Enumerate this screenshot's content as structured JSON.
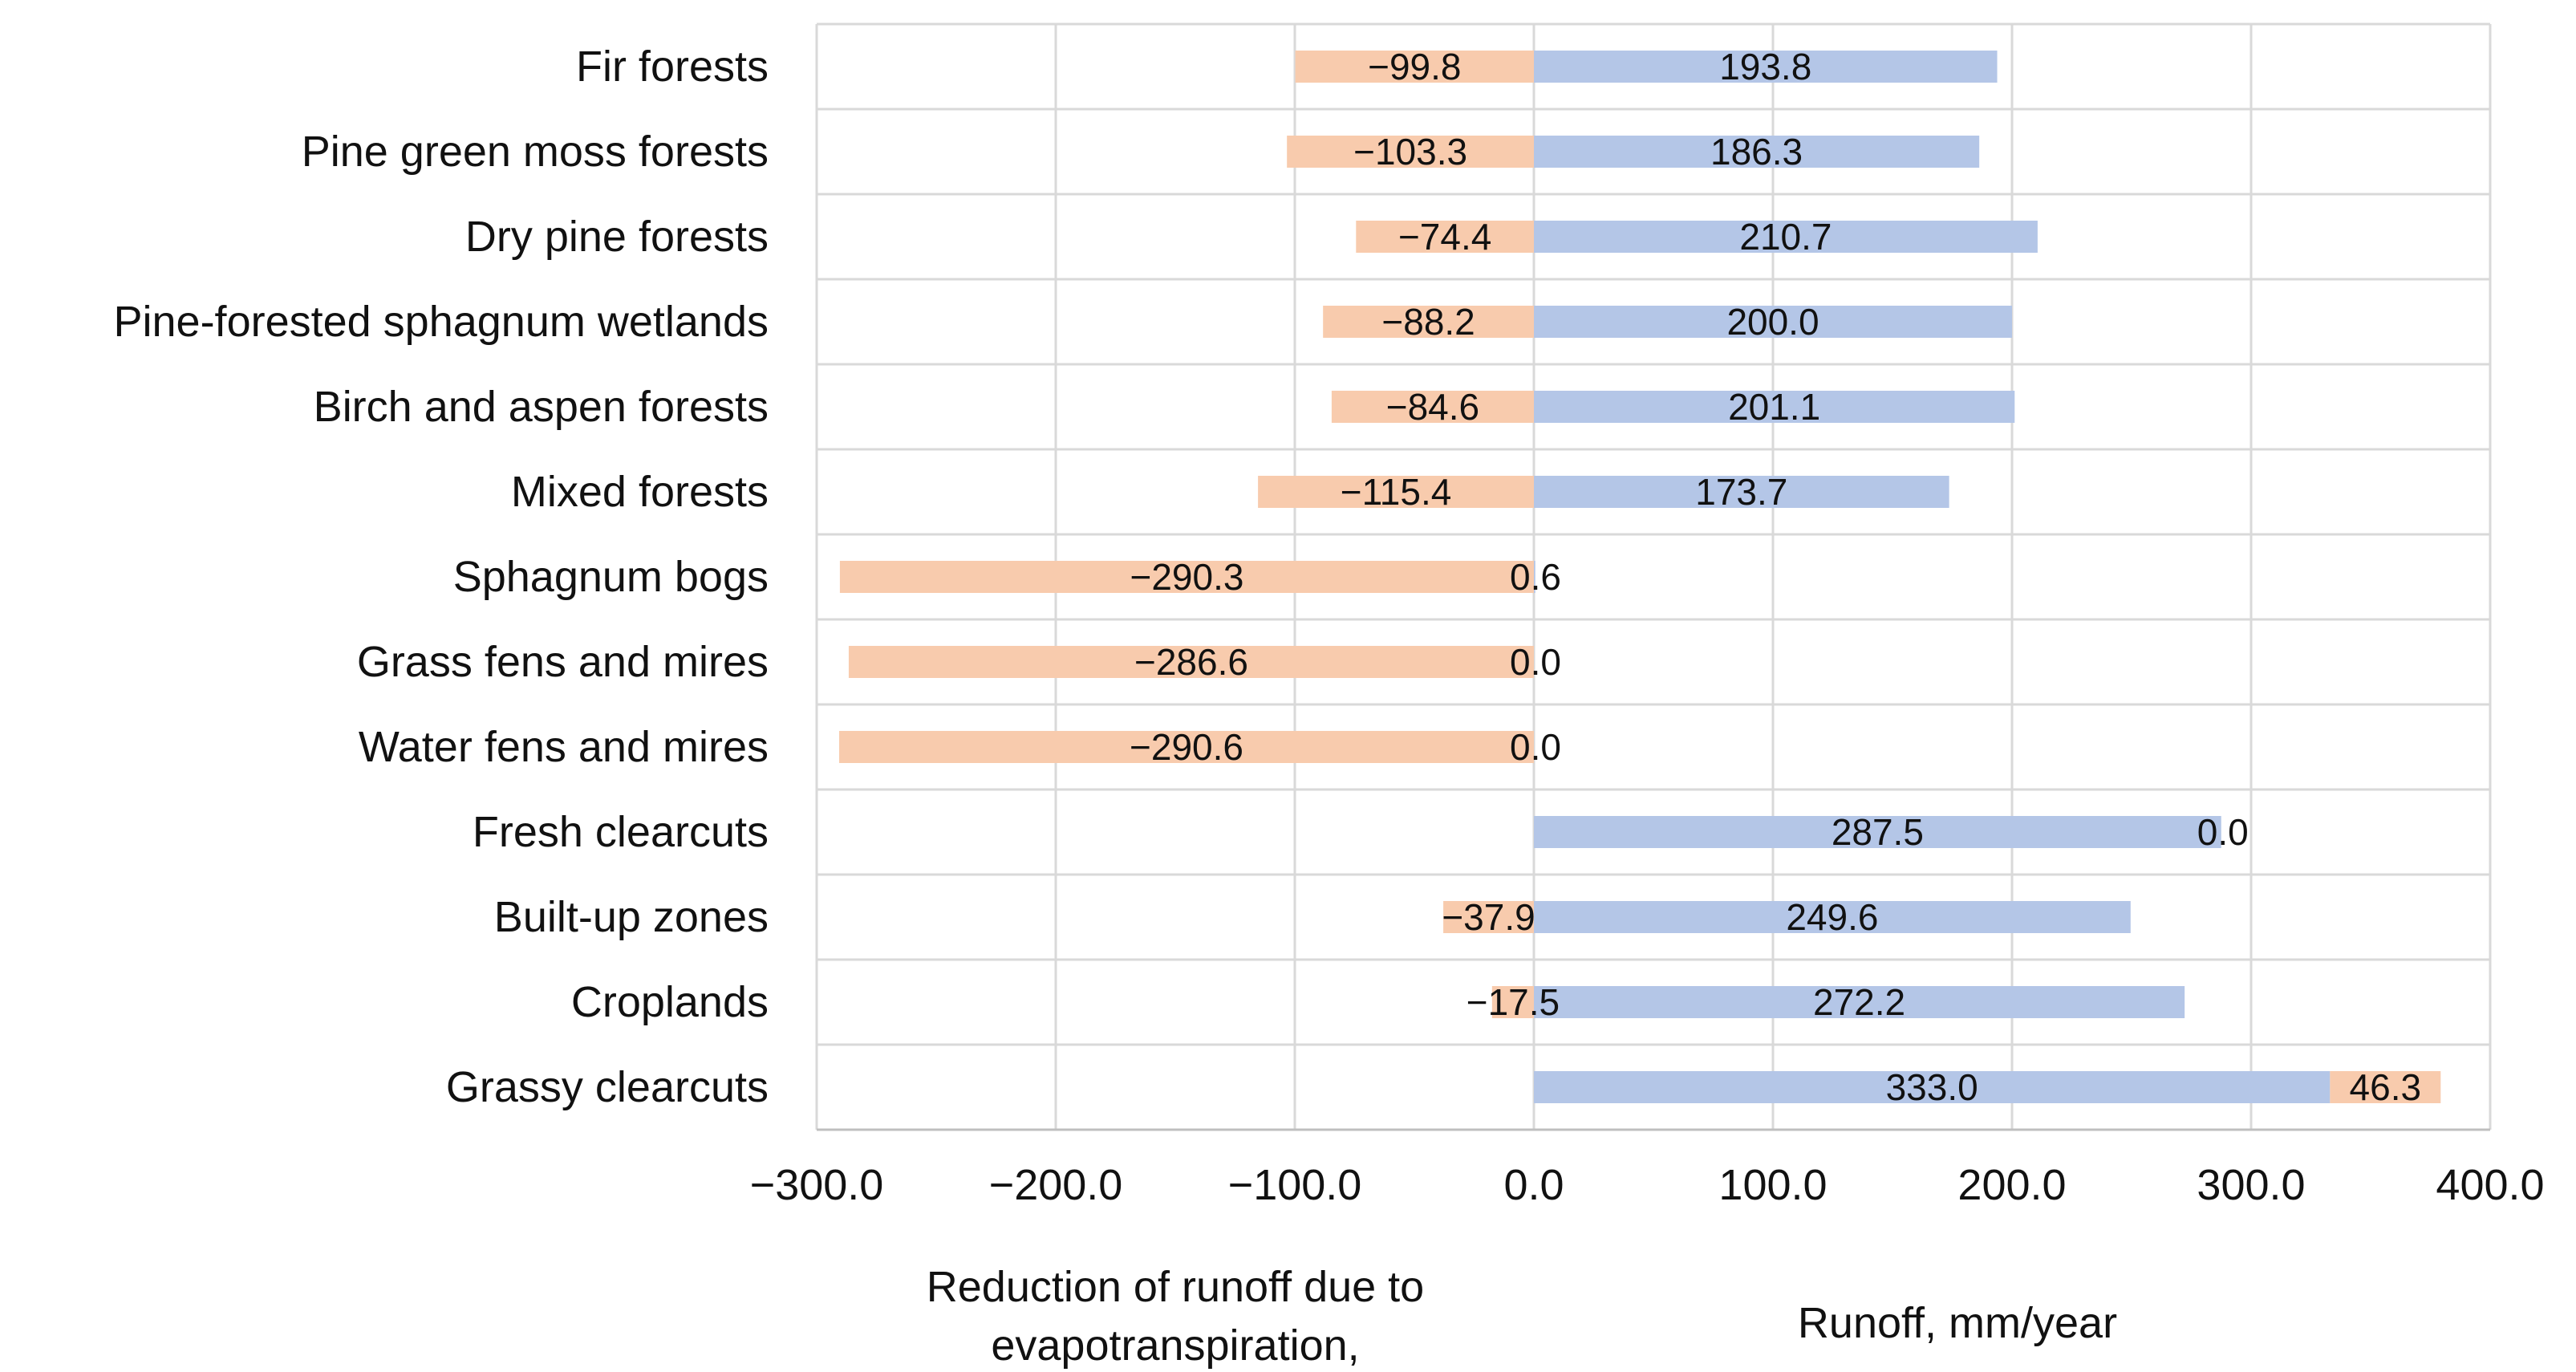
{
  "chart_data": {
    "type": "bar",
    "orientation": "horizontal",
    "stacked": true,
    "categories": [
      "Fir forests",
      "Pine green moss forests",
      "Dry pine forests",
      "Pine-forested sphagnum wetlands",
      "Birch and aspen forests",
      "Mixed forests",
      "Sphagnum bogs",
      "Grass fens and mires",
      "Water fens and mires",
      "Fresh clearcuts",
      "Built-up zones",
      "Croplands",
      "Grassy clearcuts"
    ],
    "series": [
      {
        "name": "Runoff",
        "color": "#b4c6e7",
        "values": [
          193.8,
          186.3,
          210.7,
          200.0,
          201.1,
          173.7,
          0.6,
          0.0,
          0.0,
          287.5,
          249.6,
          272.2,
          333.0
        ],
        "labels": [
          "193.8",
          "186.3",
          "210.7",
          "200.0",
          "201.1",
          "173.7",
          "0.6",
          "0.0",
          "0.0",
          "287.5",
          "249.6",
          "272.2",
          "333.0"
        ]
      },
      {
        "name": "Reduction of runoff due to evapotranspiration",
        "color": "#f8cbad",
        "values": [
          -99.8,
          -103.3,
          -74.4,
          -88.2,
          -84.6,
          -115.4,
          -290.3,
          -286.6,
          -290.6,
          0.0,
          -37.9,
          -17.5,
          46.3
        ],
        "labels": [
          "−99.8",
          "−103.3",
          "−74.4",
          "−88.2",
          "−84.6",
          "−115.4",
          "−290.3",
          "−286.6",
          "−290.6",
          "0.0",
          "−37.9",
          "−17.5",
          "46.3"
        ]
      }
    ],
    "xlim": [
      -300,
      400
    ],
    "xticks": [
      -300,
      -200,
      -100,
      0,
      100,
      200,
      300,
      400
    ],
    "xtick_labels": [
      "−300.0",
      "−200.0",
      "−100.0",
      "0.0",
      "100.0",
      "200.0",
      "300.0",
      "400.0"
    ],
    "xlabel_left": [
      "Reduction of runoff due to",
      "evapotranspiration,"
    ],
    "xlabel_right": "Runoff, mm/year",
    "grid": true
  }
}
